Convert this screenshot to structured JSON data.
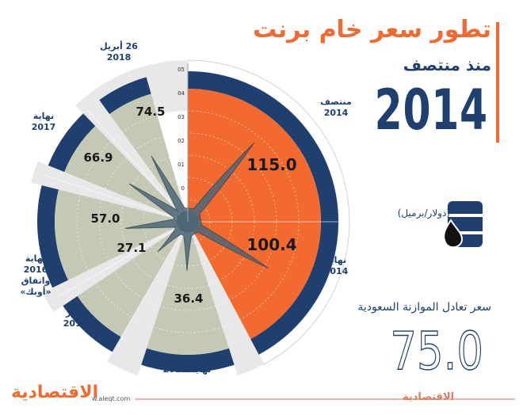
{
  "header": {
    "title_line1": "تطور سعر خام برنت",
    "title_line2": "منذ منتصف",
    "title_year": "2014"
  },
  "unit_label": "(دولار/برميل)",
  "breakeven": {
    "label": "سعر تعادل الموازنة السعودية",
    "value": "75.0"
  },
  "footer": {
    "logo_left": "الاقتصادية",
    "url": "w.aleqt.com",
    "logo_right": "الاقتصادية"
  },
  "colors": {
    "orange": "#f26a30",
    "navy": "#1f3f6e",
    "sage": "#c4c9b5",
    "light_gray": "#e8e8e8"
  },
  "chart_data": {
    "type": "polar_bar",
    "categories": [
      "منتصف 2014",
      "نهاية 2014",
      "نهاية 2015",
      "يناير 2016",
      "نهاية 2016 واتفاق «أوبك»",
      "نهاية 2017",
      "26 أبريل 2018"
    ],
    "values": [
      115.0,
      100.4,
      36.4,
      27.1,
      57.0,
      66.9,
      74.5
    ],
    "value_labels": [
      "115.0",
      "100.4",
      "36.4",
      "27.1",
      "57.0",
      "66.9",
      "74.5"
    ],
    "axis_ticks": [
      "05",
      "04",
      "03",
      "02",
      "01",
      "0"
    ],
    "category_labels": [
      {
        "lines": [
          "منتصف",
          "2014"
        ]
      },
      {
        "lines": [
          "نهاية",
          "2014"
        ]
      },
      {
        "lines": [
          "نهاية 2015"
        ]
      },
      {
        "lines": [
          "يناير",
          "2016"
        ]
      },
      {
        "lines": [
          "نهاية",
          "2016",
          "واتفاق",
          "«أوبك»"
        ]
      },
      {
        "lines": [
          "نهاية",
          "2017"
        ]
      },
      {
        "lines": [
          "26 أبريل",
          "2018"
        ]
      }
    ]
  }
}
